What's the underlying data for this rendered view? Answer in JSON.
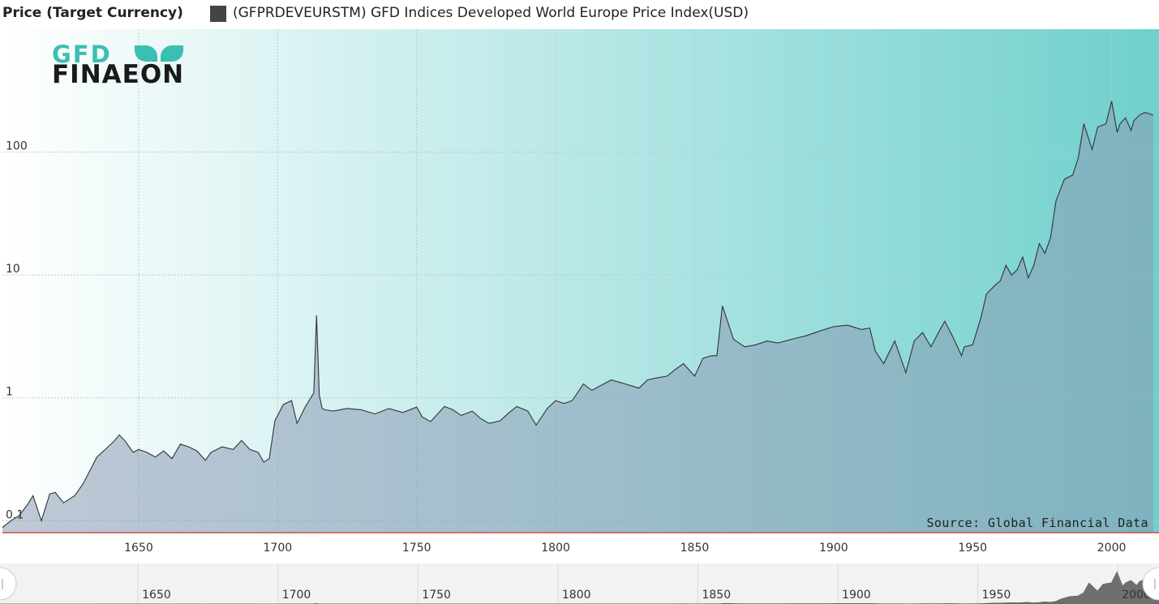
{
  "legend": {
    "title": "Price (Target Currency)",
    "series_label": "(GFPRDEVEURSTM) GFD Indices Developed World Europe Price Index(USD)",
    "swatch_color": "#444444"
  },
  "logo": {
    "line1": "GFD",
    "line2": "FINAEON",
    "accent_color": "#3bbfb3"
  },
  "source_note": "Source: Global Financial Data",
  "colors": {
    "bg_left": "#ffffff",
    "bg_right": "#6fd0cd",
    "area_fill": "#8a9ab4",
    "line": "#333333"
  },
  "chart_data": {
    "type": "area",
    "title": "",
    "xlabel": "",
    "ylabel": "",
    "yscale": "log",
    "xlim": [
      1601,
      2015
    ],
    "ylim": [
      0.08,
      1000
    ],
    "grid": true,
    "x_ticks": [
      1650,
      1700,
      1750,
      1800,
      1850,
      1900,
      1950,
      2000
    ],
    "y_ticks": [
      0.1,
      1,
      10,
      100
    ],
    "y_tick_labels": [
      "0.1",
      "1",
      "10",
      "100"
    ],
    "series": [
      {
        "name": "(GFPRDEVEURSTM) GFD Indices Developed World Europe Price Index(USD)",
        "x": [
          1601,
          1604,
          1607,
          1610,
          1612,
          1615,
          1618,
          1620,
          1623,
          1627,
          1630,
          1635,
          1638,
          1641,
          1643,
          1645,
          1648,
          1650,
          1653,
          1656,
          1659,
          1662,
          1665,
          1668,
          1671,
          1674,
          1676,
          1680,
          1684,
          1687,
          1690,
          1693,
          1695,
          1697,
          1699,
          1702,
          1705,
          1707,
          1710,
          1713,
          1714,
          1715,
          1716,
          1717,
          1720,
          1725,
          1730,
          1735,
          1740,
          1745,
          1750,
          1752,
          1755,
          1760,
          1763,
          1766,
          1770,
          1773,
          1776,
          1780,
          1783,
          1786,
          1790,
          1793,
          1797,
          1800,
          1803,
          1806,
          1810,
          1813,
          1816,
          1820,
          1825,
          1830,
          1833,
          1836,
          1840,
          1843,
          1846,
          1850,
          1853,
          1856,
          1858,
          1860,
          1864,
          1868,
          1872,
          1876,
          1880,
          1885,
          1890,
          1895,
          1900,
          1905,
          1910,
          1913,
          1915,
          1918,
          1922,
          1926,
          1929,
          1932,
          1935,
          1938,
          1940,
          1943,
          1946,
          1947,
          1950,
          1953,
          1955,
          1958,
          1960,
          1962,
          1964,
          1966,
          1968,
          1970,
          1972,
          1974,
          1976,
          1978,
          1980,
          1983,
          1986,
          1988,
          1990,
          1993,
          1995,
          1998,
          2000,
          2002,
          2003,
          2005,
          2007,
          2008,
          2010,
          2012,
          2015
        ],
        "y": [
          0.088,
          0.1,
          0.11,
          0.135,
          0.16,
          0.1,
          0.165,
          0.17,
          0.14,
          0.16,
          0.2,
          0.33,
          0.38,
          0.44,
          0.5,
          0.45,
          0.36,
          0.38,
          0.36,
          0.33,
          0.37,
          0.32,
          0.42,
          0.4,
          0.37,
          0.31,
          0.36,
          0.4,
          0.38,
          0.45,
          0.38,
          0.36,
          0.3,
          0.32,
          0.65,
          0.88,
          0.95,
          0.62,
          0.85,
          1.1,
          4.7,
          1.05,
          0.82,
          0.8,
          0.78,
          0.82,
          0.8,
          0.74,
          0.82,
          0.76,
          0.84,
          0.7,
          0.64,
          0.85,
          0.8,
          0.72,
          0.78,
          0.68,
          0.62,
          0.65,
          0.75,
          0.85,
          0.78,
          0.6,
          0.82,
          0.95,
          0.9,
          0.95,
          1.3,
          1.15,
          1.25,
          1.4,
          1.3,
          1.2,
          1.4,
          1.45,
          1.5,
          1.7,
          1.9,
          1.5,
          2.1,
          2.2,
          2.2,
          5.6,
          3.0,
          2.6,
          2.7,
          2.9,
          2.8,
          3.0,
          3.2,
          3.5,
          3.8,
          3.9,
          3.6,
          3.7,
          2.4,
          1.9,
          2.9,
          1.6,
          2.9,
          3.4,
          2.6,
          3.5,
          4.2,
          3.1,
          2.2,
          2.6,
          2.7,
          4.5,
          7.0,
          8.2,
          9.0,
          12,
          10,
          11,
          14,
          9.5,
          12,
          18,
          15,
          20,
          40,
          60,
          65,
          90,
          170,
          105,
          160,
          170,
          260,
          145,
          170,
          190,
          150,
          180,
          200,
          210,
          200
        ]
      }
    ]
  },
  "navigator": {
    "ticks": [
      1650,
      1700,
      1750,
      1800,
      1850,
      1900,
      1950,
      2000
    ],
    "handle_left_icon": "scroll-handle-left-icon",
    "handle_right_icon": "scroll-handle-right-icon"
  }
}
